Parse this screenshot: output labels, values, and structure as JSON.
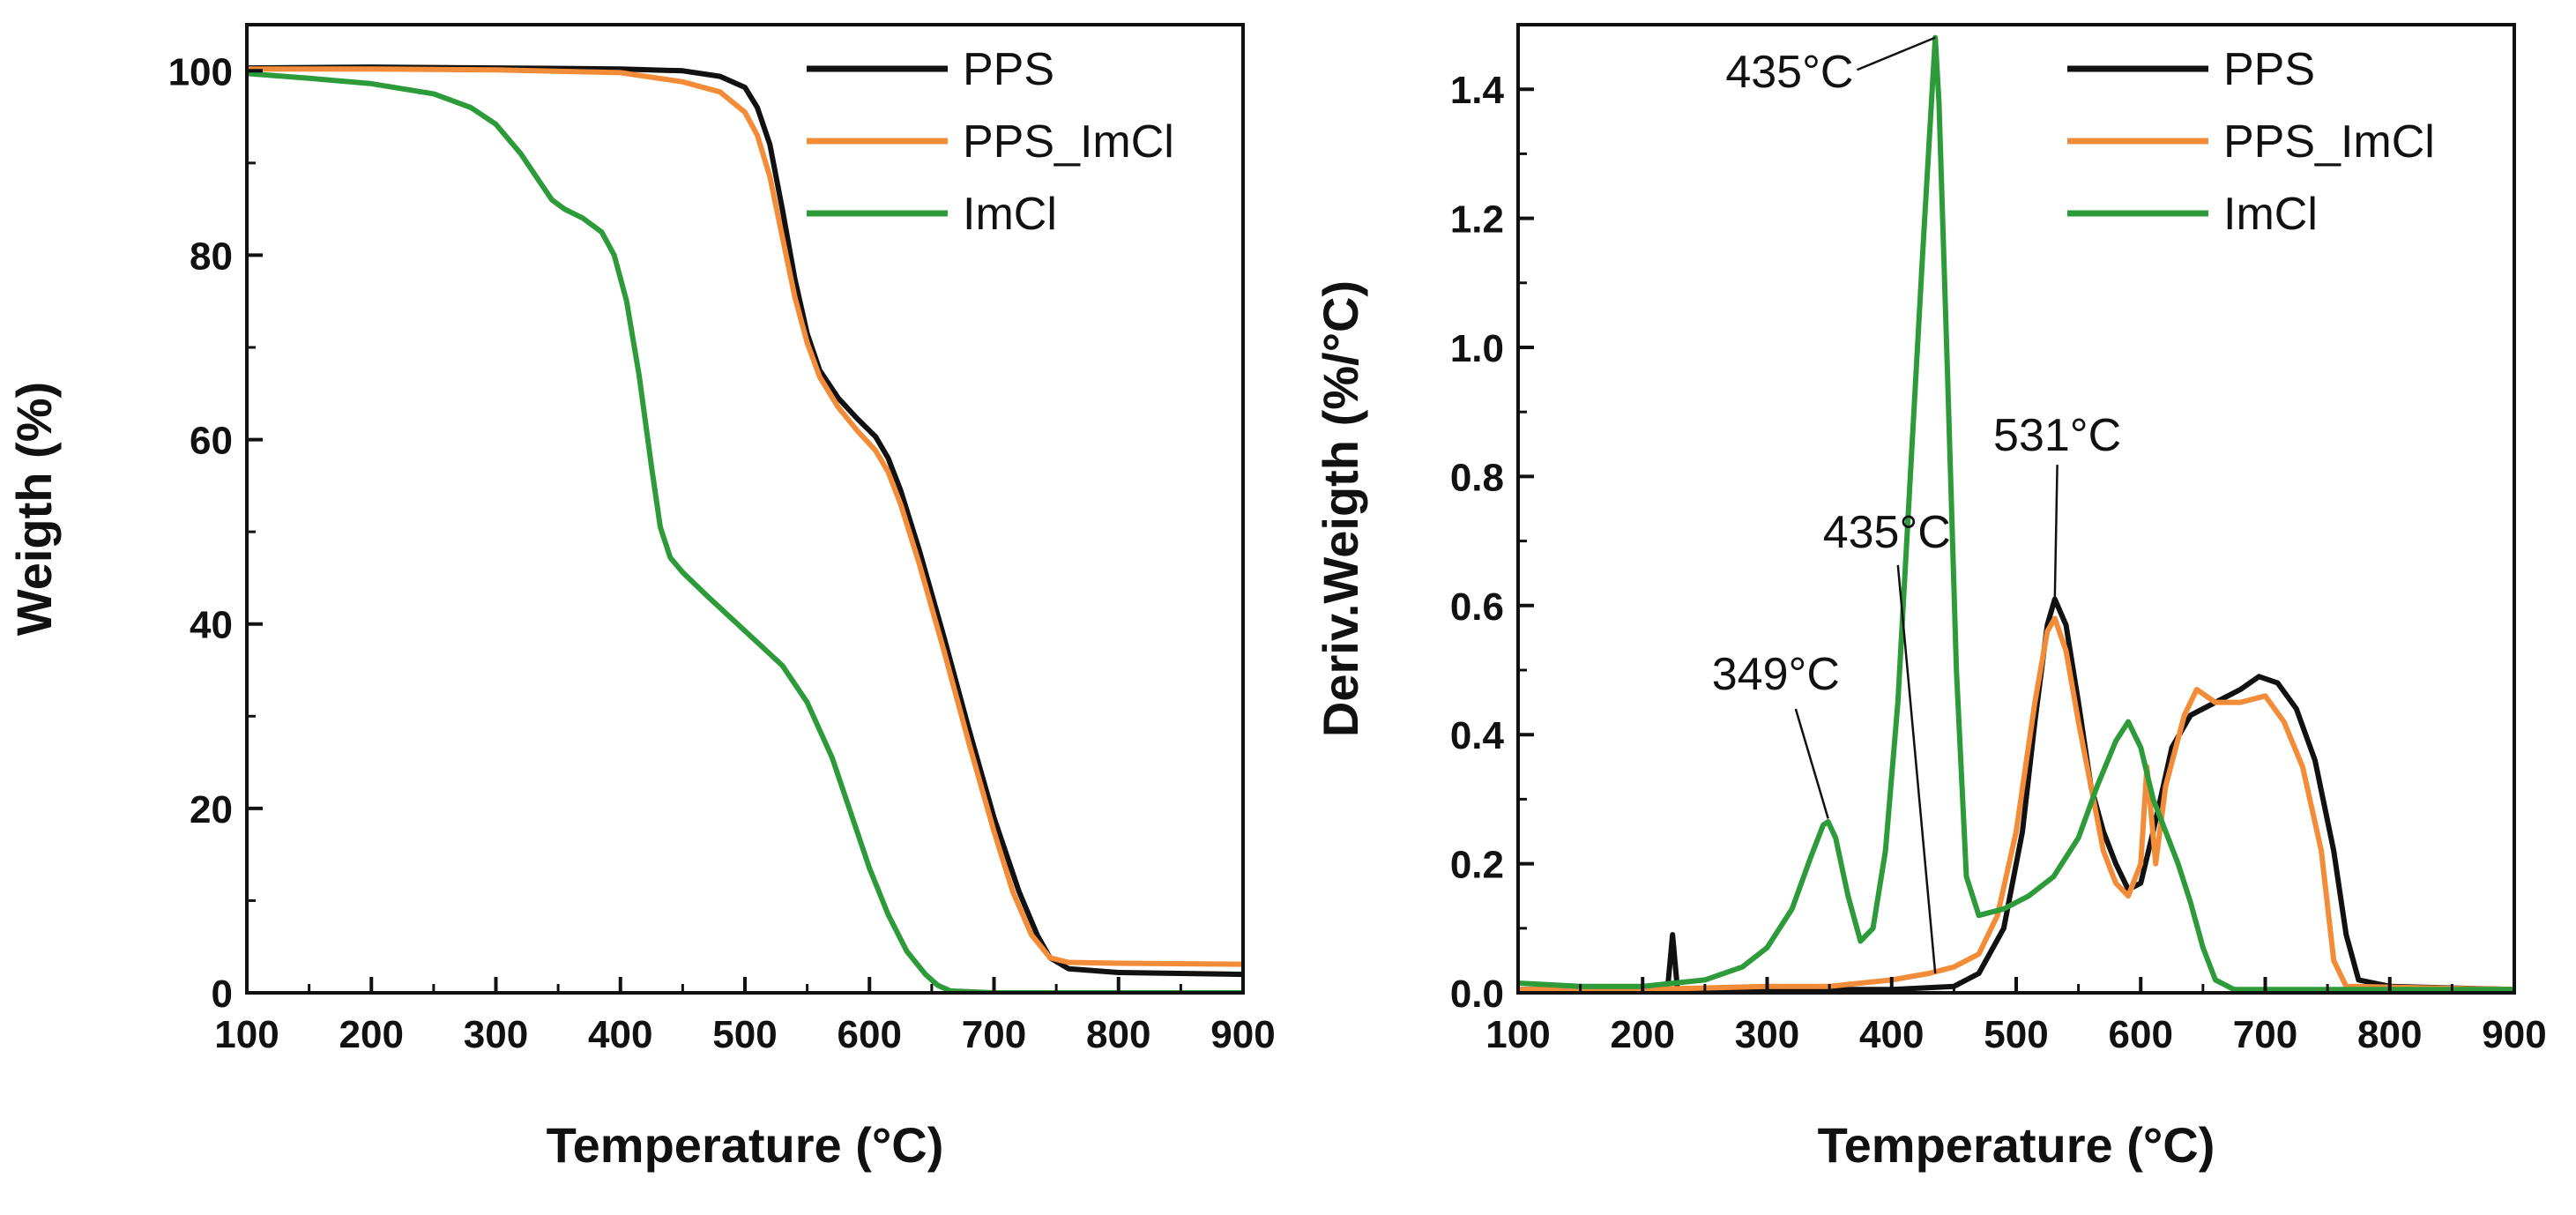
{
  "chart_data": [
    {
      "type": "line",
      "title": "",
      "xlabel": "Temperature (°C)",
      "ylabel": "Weigth (%)",
      "xlim": [
        100,
        900
      ],
      "ylim": [
        0,
        105
      ],
      "xticks": [
        100,
        200,
        300,
        400,
        500,
        600,
        700,
        800,
        900
      ],
      "yticks": [
        0,
        20,
        40,
        60,
        80,
        100
      ],
      "x_tick_labels": [
        "100",
        "200",
        "300",
        "400",
        "500",
        "600",
        "700",
        "800",
        "900"
      ],
      "y_tick_labels": [
        "0",
        "20",
        "40",
        "60",
        "80",
        "100"
      ],
      "legend_position": "top-right",
      "series": [
        {
          "name": "PPS",
          "color": "#111111",
          "points": [
            [
              100,
              100.3
            ],
            [
              200,
              100.4
            ],
            [
              300,
              100.3
            ],
            [
              400,
              100.2
            ],
            [
              450,
              100
            ],
            [
              480,
              99.4
            ],
            [
              500,
              98.2
            ],
            [
              510,
              96
            ],
            [
              520,
              92
            ],
            [
              530,
              85
            ],
            [
              540,
              77.5
            ],
            [
              550,
              71.5
            ],
            [
              560,
              67.5
            ],
            [
              575,
              64.5
            ],
            [
              590,
              62.3
            ],
            [
              605,
              60.3
            ],
            [
              615,
              58
            ],
            [
              625,
              54.5
            ],
            [
              640,
              48
            ],
            [
              660,
              38.5
            ],
            [
              680,
              28.5
            ],
            [
              700,
              19
            ],
            [
              720,
              11
            ],
            [
              735,
              6.2
            ],
            [
              745,
              3.8
            ],
            [
              760,
              2.6
            ],
            [
              800,
              2.2
            ],
            [
              900,
              2.0
            ]
          ]
        },
        {
          "name": "PPS_ImCl",
          "color": "#f28c38",
          "points": [
            [
              100,
              100.2
            ],
            [
              200,
              100.2
            ],
            [
              300,
              100.1
            ],
            [
              400,
              99.8
            ],
            [
              450,
              98.8
            ],
            [
              480,
              97.7
            ],
            [
              500,
              95.5
            ],
            [
              510,
              93
            ],
            [
              520,
              88.5
            ],
            [
              530,
              82
            ],
            [
              540,
              75.5
            ],
            [
              550,
              70.5
            ],
            [
              560,
              66.8
            ],
            [
              575,
              63.5
            ],
            [
              590,
              61
            ],
            [
              605,
              58.8
            ],
            [
              615,
              56.5
            ],
            [
              625,
              53
            ],
            [
              640,
              46.5
            ],
            [
              660,
              37
            ],
            [
              680,
              27
            ],
            [
              700,
              17.5
            ],
            [
              715,
              11
            ],
            [
              730,
              6.3
            ],
            [
              745,
              3.8
            ],
            [
              760,
              3.3
            ],
            [
              800,
              3.2
            ],
            [
              900,
              3.1
            ]
          ]
        },
        {
          "name": "ImCl",
          "color": "#2e9b3a",
          "points": [
            [
              100,
              99.7
            ],
            [
              150,
              99.2
            ],
            [
              200,
              98.6
            ],
            [
              250,
              97.5
            ],
            [
              280,
              96
            ],
            [
              300,
              94.2
            ],
            [
              320,
              91
            ],
            [
              335,
              88
            ],
            [
              345,
              86
            ],
            [
              355,
              85
            ],
            [
              370,
              84
            ],
            [
              385,
              82.5
            ],
            [
              395,
              80
            ],
            [
              405,
              75
            ],
            [
              415,
              67
            ],
            [
              425,
              57
            ],
            [
              432,
              50.5
            ],
            [
              440,
              47.2
            ],
            [
              450,
              45.6
            ],
            [
              470,
              43
            ],
            [
              490,
              40.5
            ],
            [
              510,
              38
            ],
            [
              530,
              35.5
            ],
            [
              550,
              31.5
            ],
            [
              570,
              25.5
            ],
            [
              585,
              19.5
            ],
            [
              600,
              13.5
            ],
            [
              615,
              8.5
            ],
            [
              630,
              4.5
            ],
            [
              645,
              2
            ],
            [
              655,
              0.8
            ],
            [
              665,
              0.2
            ],
            [
              700,
              0
            ],
            [
              900,
              0
            ]
          ]
        }
      ],
      "legend": [
        "PPS",
        "PPS_ImCl",
        "ImCl"
      ]
    },
    {
      "type": "line",
      "title": "",
      "xlabel": "Temperature (°C)",
      "ylabel": "Deriv.Weigth (%/°C)",
      "xlim": [
        100,
        900
      ],
      "ylim": [
        0,
        1.5
      ],
      "xticks": [
        100,
        200,
        300,
        400,
        500,
        600,
        700,
        800,
        900
      ],
      "yticks": [
        0.0,
        0.2,
        0.4,
        0.6,
        0.8,
        1.0,
        1.2,
        1.4
      ],
      "x_tick_labels": [
        "100",
        "200",
        "300",
        "400",
        "500",
        "600",
        "700",
        "800",
        "900"
      ],
      "y_tick_labels": [
        "0.0",
        "0.2",
        "0.4",
        "0.6",
        "0.8",
        "1.0",
        "1.2",
        "1.4"
      ],
      "legend_position": "top-right",
      "series": [
        {
          "name": "PPS",
          "color": "#111111",
          "points": [
            [
              100,
              0.005
            ],
            [
              200,
              0.005
            ],
            [
              220,
              0.005
            ],
            [
              224,
              0.09
            ],
            [
              228,
              0.005
            ],
            [
              300,
              0.005
            ],
            [
              400,
              0.005
            ],
            [
              450,
              0.01
            ],
            [
              470,
              0.03
            ],
            [
              490,
              0.1
            ],
            [
              505,
              0.25
            ],
            [
              515,
              0.42
            ],
            [
              525,
              0.57
            ],
            [
              531,
              0.61
            ],
            [
              540,
              0.57
            ],
            [
              550,
              0.45
            ],
            [
              560,
              0.32
            ],
            [
              570,
              0.25
            ],
            [
              580,
              0.2
            ],
            [
              590,
              0.16
            ],
            [
              600,
              0.17
            ],
            [
              610,
              0.25
            ],
            [
              625,
              0.38
            ],
            [
              640,
              0.43
            ],
            [
              660,
              0.45
            ],
            [
              680,
              0.47
            ],
            [
              695,
              0.49
            ],
            [
              710,
              0.48
            ],
            [
              725,
              0.44
            ],
            [
              740,
              0.36
            ],
            [
              755,
              0.22
            ],
            [
              765,
              0.09
            ],
            [
              775,
              0.02
            ],
            [
              800,
              0.01
            ],
            [
              900,
              0.005
            ]
          ]
        },
        {
          "name": "PPS_ImCl",
          "color": "#f28c38",
          "points": [
            [
              100,
              0.005
            ],
            [
              200,
              0.005
            ],
            [
              300,
              0.01
            ],
            [
              350,
              0.01
            ],
            [
              400,
              0.02
            ],
            [
              430,
              0.03
            ],
            [
              450,
              0.04
            ],
            [
              470,
              0.06
            ],
            [
              485,
              0.12
            ],
            [
              500,
              0.25
            ],
            [
              515,
              0.45
            ],
            [
              525,
              0.56
            ],
            [
              531,
              0.58
            ],
            [
              540,
              0.53
            ],
            [
              550,
              0.42
            ],
            [
              560,
              0.32
            ],
            [
              570,
              0.22
            ],
            [
              580,
              0.17
            ],
            [
              590,
              0.15
            ],
            [
              600,
              0.2
            ],
            [
              605,
              0.35
            ],
            [
              612,
              0.2
            ],
            [
              620,
              0.32
            ],
            [
              635,
              0.43
            ],
            [
              645,
              0.47
            ],
            [
              660,
              0.45
            ],
            [
              680,
              0.45
            ],
            [
              700,
              0.46
            ],
            [
              715,
              0.42
            ],
            [
              730,
              0.35
            ],
            [
              745,
              0.22
            ],
            [
              755,
              0.05
            ],
            [
              765,
              0.01
            ],
            [
              900,
              0.005
            ]
          ]
        },
        {
          "name": "ImCl",
          "color": "#2e9b3a",
          "points": [
            [
              100,
              0.015
            ],
            [
              150,
              0.01
            ],
            [
              200,
              0.01
            ],
            [
              250,
              0.02
            ],
            [
              280,
              0.04
            ],
            [
              300,
              0.07
            ],
            [
              320,
              0.13
            ],
            [
              335,
              0.21
            ],
            [
              345,
              0.26
            ],
            [
              349,
              0.265
            ],
            [
              355,
              0.24
            ],
            [
              365,
              0.15
            ],
            [
              375,
              0.08
            ],
            [
              385,
              0.1
            ],
            [
              395,
              0.22
            ],
            [
              405,
              0.45
            ],
            [
              415,
              0.8
            ],
            [
              425,
              1.15
            ],
            [
              432,
              1.38
            ],
            [
              435,
              1.48
            ],
            [
              438,
              1.38
            ],
            [
              445,
              0.95
            ],
            [
              452,
              0.5
            ],
            [
              460,
              0.18
            ],
            [
              470,
              0.12
            ],
            [
              490,
              0.13
            ],
            [
              510,
              0.15
            ],
            [
              530,
              0.18
            ],
            [
              550,
              0.24
            ],
            [
              565,
              0.32
            ],
            [
              580,
              0.39
            ],
            [
              590,
              0.42
            ],
            [
              600,
              0.38
            ],
            [
              610,
              0.3
            ],
            [
              620,
              0.25
            ],
            [
              630,
              0.2
            ],
            [
              640,
              0.14
            ],
            [
              650,
              0.07
            ],
            [
              660,
              0.02
            ],
            [
              675,
              0.005
            ],
            [
              700,
              0.005
            ],
            [
              900,
              0.005
            ]
          ]
        }
      ],
      "legend": [
        "PPS",
        "PPS_ImCl",
        "ImCl"
      ],
      "annotations": [
        {
          "text": "435°C",
          "x": 435,
          "y": 1.48,
          "label_x": 375,
          "label_y": 1.43
        },
        {
          "text": "435°C",
          "x": 435,
          "y": 0.03,
          "label_x": 405,
          "label_y": 0.69
        },
        {
          "text": "349°C",
          "x": 349,
          "y": 0.27,
          "label_x": 330,
          "label_y": 0.47
        },
        {
          "text": "531°C",
          "x": 531,
          "y": 0.61,
          "label_x": 533,
          "label_y": 0.84
        }
      ]
    }
  ]
}
